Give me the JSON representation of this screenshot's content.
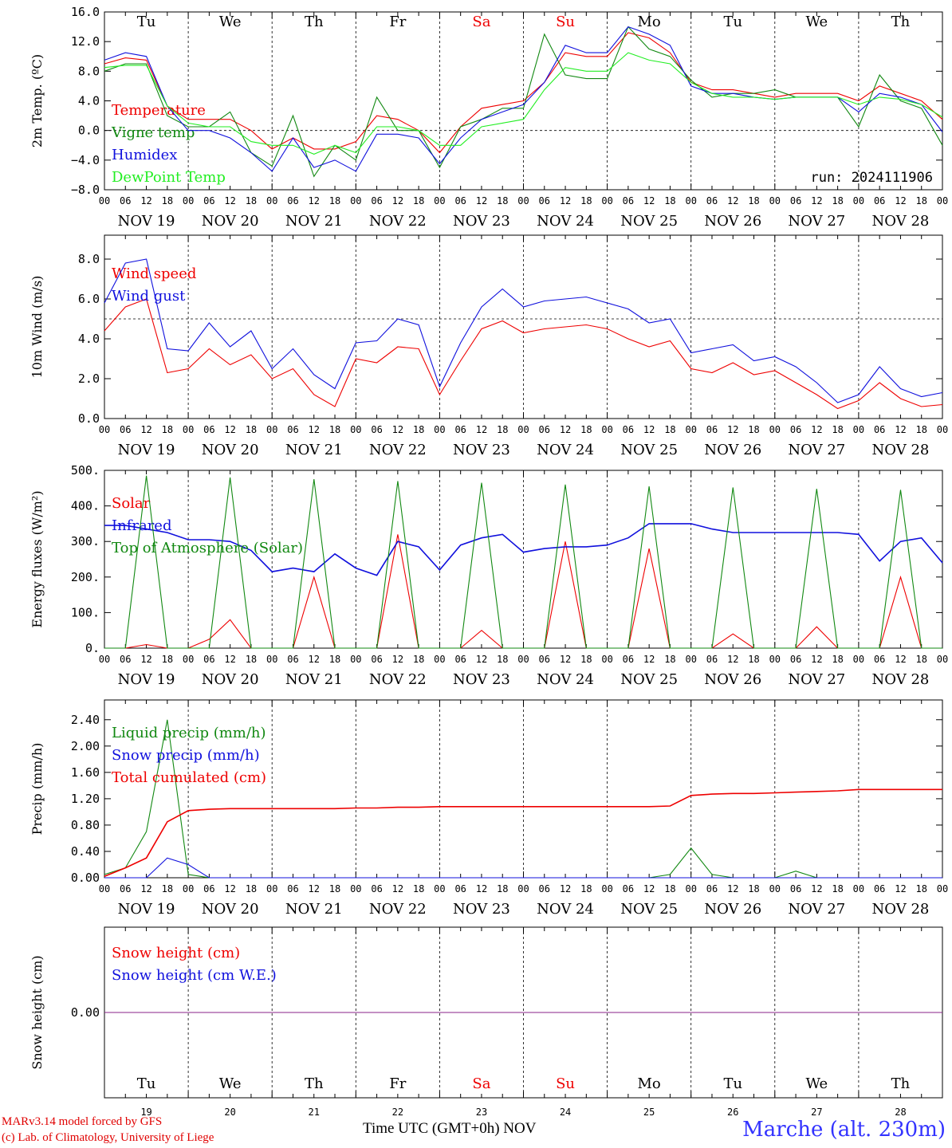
{
  "model_credit": "MARv3.14 model forced by GFS",
  "lab_credit": "(c) Lab. of Climatology, University of Liege",
  "x_axis_title": "Time UTC (GMT+0h) NOV",
  "station": "Marche (alt. 230m)",
  "run_label": "run: 2024111906",
  "hour_labels": [
    "00",
    "06",
    "12",
    "18"
  ],
  "day_names": [
    "Tu",
    "We",
    "Th",
    "Fr",
    "Sa",
    "Su",
    "Mo",
    "Tu",
    "We",
    "Th"
  ],
  "weekend_days": [
    4,
    5
  ],
  "date_labels": [
    "NOV 19",
    "NOV 20",
    "NOV 21",
    "NOV 22",
    "NOV 23",
    "NOV 24",
    "NOV 25",
    "NOV 26",
    "NOV 27",
    "NOV 28"
  ],
  "day_numbers": [
    "19",
    "20",
    "21",
    "22",
    "23",
    "24",
    "25",
    "26",
    "27",
    "28"
  ],
  "colors": {
    "red": "#ee0000",
    "green": "#118811",
    "blue": "#1010dd",
    "lightgreen": "#22ee22",
    "purple": "#882288",
    "weekend": "#ee0000"
  },
  "chart_data": [
    {
      "type": "line",
      "ylabel": "2m Temp. (ºC)",
      "ylim": [
        -8,
        16
      ],
      "yticks": [
        "16.0",
        "12.0",
        "8.0",
        "4.0",
        "0.0",
        "−4.0",
        "−8.0"
      ],
      "ytick_values": [
        16,
        12,
        8,
        4,
        0,
        -4,
        -8
      ],
      "ref_line": 0,
      "x_hours": [
        0,
        6,
        12,
        18,
        24,
        30,
        36,
        42,
        48,
        54,
        60,
        66,
        72,
        78,
        84,
        90,
        96,
        102,
        108,
        114,
        120,
        126,
        132,
        138,
        144,
        150,
        156,
        162,
        168,
        174,
        180,
        186,
        192,
        198,
        204,
        210,
        216,
        222,
        228,
        234,
        240
      ],
      "series": [
        {
          "name": "Temperature",
          "color": "red",
          "values": [
            9,
            9.8,
            9.5,
            3.3,
            1.5,
            1.5,
            1.5,
            0,
            -2.5,
            -1,
            -2.5,
            -2.5,
            -1.5,
            2,
            1.5,
            0,
            -3,
            0.5,
            3,
            3.5,
            4,
            6.5,
            10.5,
            10,
            10,
            13.2,
            12.5,
            10.5,
            6.5,
            5.5,
            5.5,
            5,
            4.5,
            5,
            5,
            5,
            4,
            6,
            5,
            4,
            1.5
          ]
        },
        {
          "name": "Vigne temp",
          "color": "green",
          "values": [
            8,
            9,
            9,
            2,
            0.5,
            0.5,
            2.5,
            -3,
            -4.8,
            2,
            -6.2,
            -2,
            -4,
            4.5,
            0,
            0,
            -5,
            0.5,
            1.5,
            3,
            3,
            13,
            7.5,
            7,
            7,
            14,
            11,
            10,
            6.8,
            4.5,
            5,
            5,
            5.5,
            4.5,
            4.5,
            4.5,
            0.5,
            7.5,
            4,
            3,
            -2
          ]
        },
        {
          "name": "Humidex",
          "color": "blue",
          "values": [
            9.5,
            10.5,
            10,
            3.3,
            0,
            0,
            -1,
            -3,
            -5.5,
            -1,
            -5,
            -4,
            -5.5,
            -0.5,
            -0.5,
            -1,
            -4.5,
            -1,
            1.5,
            2.5,
            3.5,
            6.5,
            11.5,
            10.5,
            10.5,
            14,
            13,
            11.5,
            6,
            5,
            5,
            4.5,
            4.2,
            4.5,
            4.5,
            4.5,
            2.5,
            5,
            4.5,
            3.5,
            -0.2
          ]
        },
        {
          "name": "DewPoint Temp",
          "color": "lightgreen",
          "values": [
            8.5,
            8.8,
            8.8,
            3.3,
            1,
            0.5,
            0.5,
            -1.5,
            -2,
            -2,
            -3.2,
            -2,
            -3,
            0.5,
            0.5,
            0,
            -2,
            -2,
            0.5,
            1,
            1.5,
            5.5,
            8.5,
            8,
            8,
            10.5,
            9.5,
            9,
            6.5,
            5,
            4.5,
            4.5,
            4.2,
            4.5,
            4.5,
            4.5,
            3.5,
            4.5,
            4.2,
            3.5,
            1.8
          ]
        }
      ]
    },
    {
      "type": "line",
      "ylabel": "10m Wind (m/s)",
      "ylim": [
        0,
        9.2
      ],
      "yticks": [
        "8.0",
        "6.0",
        "4.0",
        "2.0",
        "0.0"
      ],
      "ytick_values": [
        8,
        6,
        4,
        2,
        0
      ],
      "ref_line": 5,
      "x_hours": [
        0,
        6,
        12,
        18,
        24,
        30,
        36,
        42,
        48,
        54,
        60,
        66,
        72,
        78,
        84,
        90,
        96,
        102,
        108,
        114,
        120,
        126,
        132,
        138,
        144,
        150,
        156,
        162,
        168,
        174,
        180,
        186,
        192,
        198,
        204,
        210,
        216,
        222,
        228,
        234,
        240
      ],
      "series": [
        {
          "name": "Wind speed",
          "color": "red",
          "values": [
            4.4,
            5.6,
            6,
            2.3,
            2.5,
            3.5,
            2.7,
            3.2,
            2,
            2.5,
            1.2,
            0.6,
            3,
            2.8,
            3.6,
            3.5,
            1.2,
            2.9,
            4.5,
            4.9,
            4.3,
            4.5,
            4.6,
            4.7,
            4.5,
            4,
            3.6,
            3.9,
            2.5,
            2.3,
            2.8,
            2.2,
            2.4,
            1.8,
            1.2,
            0.5,
            0.9,
            1.8,
            1,
            0.6,
            0.7
          ]
        },
        {
          "name": "Wind gust",
          "color": "blue",
          "values": [
            5.8,
            7.8,
            8,
            3.5,
            3.4,
            4.8,
            3.6,
            4.4,
            2.5,
            3.5,
            2.2,
            1.5,
            3.8,
            3.9,
            5,
            4.7,
            1.6,
            3.8,
            5.6,
            6.5,
            5.6,
            5.9,
            6,
            6.1,
            5.8,
            5.5,
            4.8,
            5,
            3.3,
            3.5,
            3.7,
            2.9,
            3.1,
            2.6,
            1.8,
            0.8,
            1.2,
            2.6,
            1.5,
            1.1,
            1.3
          ]
        }
      ]
    },
    {
      "type": "line",
      "ylabel": "Energy fluxes (W/m²)",
      "ylim": [
        0,
        500
      ],
      "yticks": [
        "500.",
        "400.",
        "300.",
        "200.",
        "100.",
        "0."
      ],
      "ytick_values": [
        500,
        400,
        300,
        200,
        100,
        0
      ],
      "x_hours": [
        0,
        6,
        12,
        18,
        24,
        30,
        36,
        42,
        48,
        54,
        60,
        66,
        72,
        78,
        84,
        90,
        96,
        102,
        108,
        114,
        120,
        126,
        132,
        138,
        144,
        150,
        156,
        162,
        168,
        174,
        180,
        186,
        192,
        198,
        204,
        210,
        216,
        222,
        228,
        234,
        240
      ],
      "series": [
        {
          "name": "Solar",
          "color": "red",
          "values": [
            0,
            0,
            10,
            0,
            0,
            25,
            80,
            0,
            0,
            0,
            200,
            0,
            0,
            0,
            320,
            0,
            0,
            0,
            50,
            0,
            0,
            0,
            300,
            0,
            0,
            0,
            280,
            0,
            0,
            0,
            40,
            0,
            0,
            0,
            60,
            0,
            0,
            0,
            200,
            0,
            0
          ]
        },
        {
          "name": "Infrared",
          "color": "blue",
          "values": [
            345,
            345,
            335,
            325,
            305,
            305,
            300,
            275,
            215,
            225,
            215,
            265,
            225,
            205,
            300,
            285,
            220,
            290,
            310,
            320,
            270,
            280,
            285,
            285,
            290,
            310,
            350,
            350,
            350,
            335,
            325,
            325,
            325,
            325,
            325,
            325,
            320,
            245,
            300,
            310,
            240
          ]
        },
        {
          "name": "Top of Atmosphere (Solar)",
          "color": "green",
          "values": [
            0,
            0,
            485,
            0,
            0,
            0,
            480,
            0,
            0,
            0,
            475,
            0,
            0,
            0,
            470,
            0,
            0,
            0,
            465,
            0,
            0,
            0,
            460,
            0,
            0,
            0,
            455,
            0,
            0,
            0,
            452,
            0,
            0,
            0,
            448,
            0,
            0,
            0,
            445,
            0,
            0
          ]
        }
      ]
    },
    {
      "type": "line",
      "ylabel": "Precip (mm/h)",
      "ylim": [
        0,
        2.7
      ],
      "yticks": [
        "2.40",
        "2.00",
        "1.60",
        "1.20",
        "0.80",
        "0.40",
        "0.00"
      ],
      "ytick_values": [
        2.4,
        2,
        1.6,
        1.2,
        0.8,
        0.4,
        0
      ],
      "x_hours": [
        0,
        6,
        12,
        18,
        24,
        30,
        36,
        42,
        48,
        54,
        60,
        66,
        72,
        78,
        84,
        90,
        96,
        102,
        108,
        114,
        120,
        126,
        132,
        138,
        144,
        150,
        156,
        162,
        168,
        174,
        180,
        186,
        192,
        198,
        204,
        210,
        216,
        222,
        228,
        234,
        240
      ],
      "series": [
        {
          "name": "Liquid precip (mm/h)",
          "color": "green",
          "values": [
            0.05,
            0.15,
            0.7,
            2.4,
            0.05,
            0,
            0,
            0,
            0,
            0,
            0,
            0,
            0,
            0,
            0,
            0,
            0,
            0,
            0,
            0,
            0,
            0,
            0,
            0,
            0,
            0,
            0,
            0.05,
            0.45,
            0.05,
            0,
            0,
            0,
            0.1,
            0,
            0,
            0,
            0,
            0,
            0,
            0
          ]
        },
        {
          "name": "Snow precip (mm/h)",
          "color": "blue",
          "values": [
            0,
            0,
            0,
            0.3,
            0.2,
            0,
            0,
            0,
            0,
            0,
            0,
            0,
            0,
            0,
            0,
            0,
            0,
            0,
            0,
            0,
            0,
            0,
            0,
            0,
            0,
            0,
            0,
            0,
            0,
            0,
            0,
            0,
            0,
            0,
            0,
            0,
            0,
            0,
            0,
            0,
            0
          ]
        },
        {
          "name": "Total cumulated (cm)",
          "color": "red",
          "values": [
            0.02,
            0.15,
            0.3,
            0.85,
            1.02,
            1.04,
            1.05,
            1.05,
            1.05,
            1.05,
            1.05,
            1.05,
            1.06,
            1.06,
            1.07,
            1.07,
            1.08,
            1.08,
            1.08,
            1.08,
            1.08,
            1.08,
            1.08,
            1.08,
            1.08,
            1.08,
            1.08,
            1.09,
            1.25,
            1.27,
            1.28,
            1.28,
            1.29,
            1.3,
            1.31,
            1.32,
            1.34,
            1.34,
            1.34,
            1.34,
            1.34
          ]
        }
      ]
    },
    {
      "type": "line",
      "ylabel": "Snow height (cm)",
      "ylim": [
        -1,
        1
      ],
      "yticks": [
        "0.00"
      ],
      "ytick_values": [
        0
      ],
      "x_hours": [
        0,
        240
      ],
      "series": [
        {
          "name": "Snow height (cm)",
          "color": "red",
          "values": [
            0,
            0
          ]
        },
        {
          "name": "Snow height (cm W.E.)",
          "color": "blue",
          "values": [
            0,
            0
          ]
        }
      ]
    }
  ]
}
